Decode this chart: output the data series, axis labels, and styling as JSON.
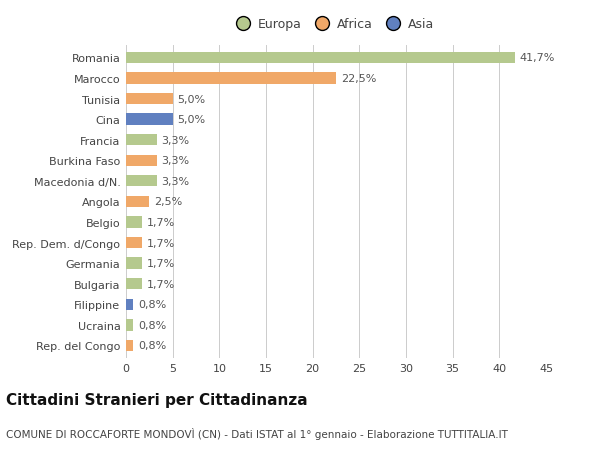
{
  "categories": [
    "Romania",
    "Marocco",
    "Tunisia",
    "Cina",
    "Francia",
    "Burkina Faso",
    "Macedonia d/N.",
    "Angola",
    "Belgio",
    "Rep. Dem. d/Congo",
    "Germania",
    "Bulgaria",
    "Filippine",
    "Ucraina",
    "Rep. del Congo"
  ],
  "values": [
    41.7,
    22.5,
    5.0,
    5.0,
    3.3,
    3.3,
    3.3,
    2.5,
    1.7,
    1.7,
    1.7,
    1.7,
    0.8,
    0.8,
    0.8
  ],
  "labels": [
    "41,7%",
    "22,5%",
    "5,0%",
    "5,0%",
    "3,3%",
    "3,3%",
    "3,3%",
    "2,5%",
    "1,7%",
    "1,7%",
    "1,7%",
    "1,7%",
    "0,8%",
    "0,8%",
    "0,8%"
  ],
  "continents": [
    "Europa",
    "Africa",
    "Africa",
    "Asia",
    "Europa",
    "Africa",
    "Europa",
    "Africa",
    "Europa",
    "Africa",
    "Europa",
    "Europa",
    "Asia",
    "Europa",
    "Africa"
  ],
  "colors": {
    "Europa": "#b5c98e",
    "Africa": "#f0a868",
    "Asia": "#6080c0"
  },
  "legend_labels": [
    "Europa",
    "Africa",
    "Asia"
  ],
  "legend_colors": [
    "#b5c98e",
    "#f0a868",
    "#6080c0"
  ],
  "xlim": [
    0,
    45
  ],
  "xticks": [
    0,
    5,
    10,
    15,
    20,
    25,
    30,
    35,
    40,
    45
  ],
  "title": "Cittadini Stranieri per Cittadinanza",
  "subtitle": "COMUNE DI ROCCAFORTE MONDOVÌ (CN) - Dati ISTAT al 1° gennaio - Elaborazione TUTTITALIA.IT",
  "bg_color": "#ffffff",
  "grid_color": "#cccccc",
  "bar_height": 0.55,
  "label_fontsize": 8,
  "tick_fontsize": 8,
  "title_fontsize": 11,
  "subtitle_fontsize": 7.5
}
